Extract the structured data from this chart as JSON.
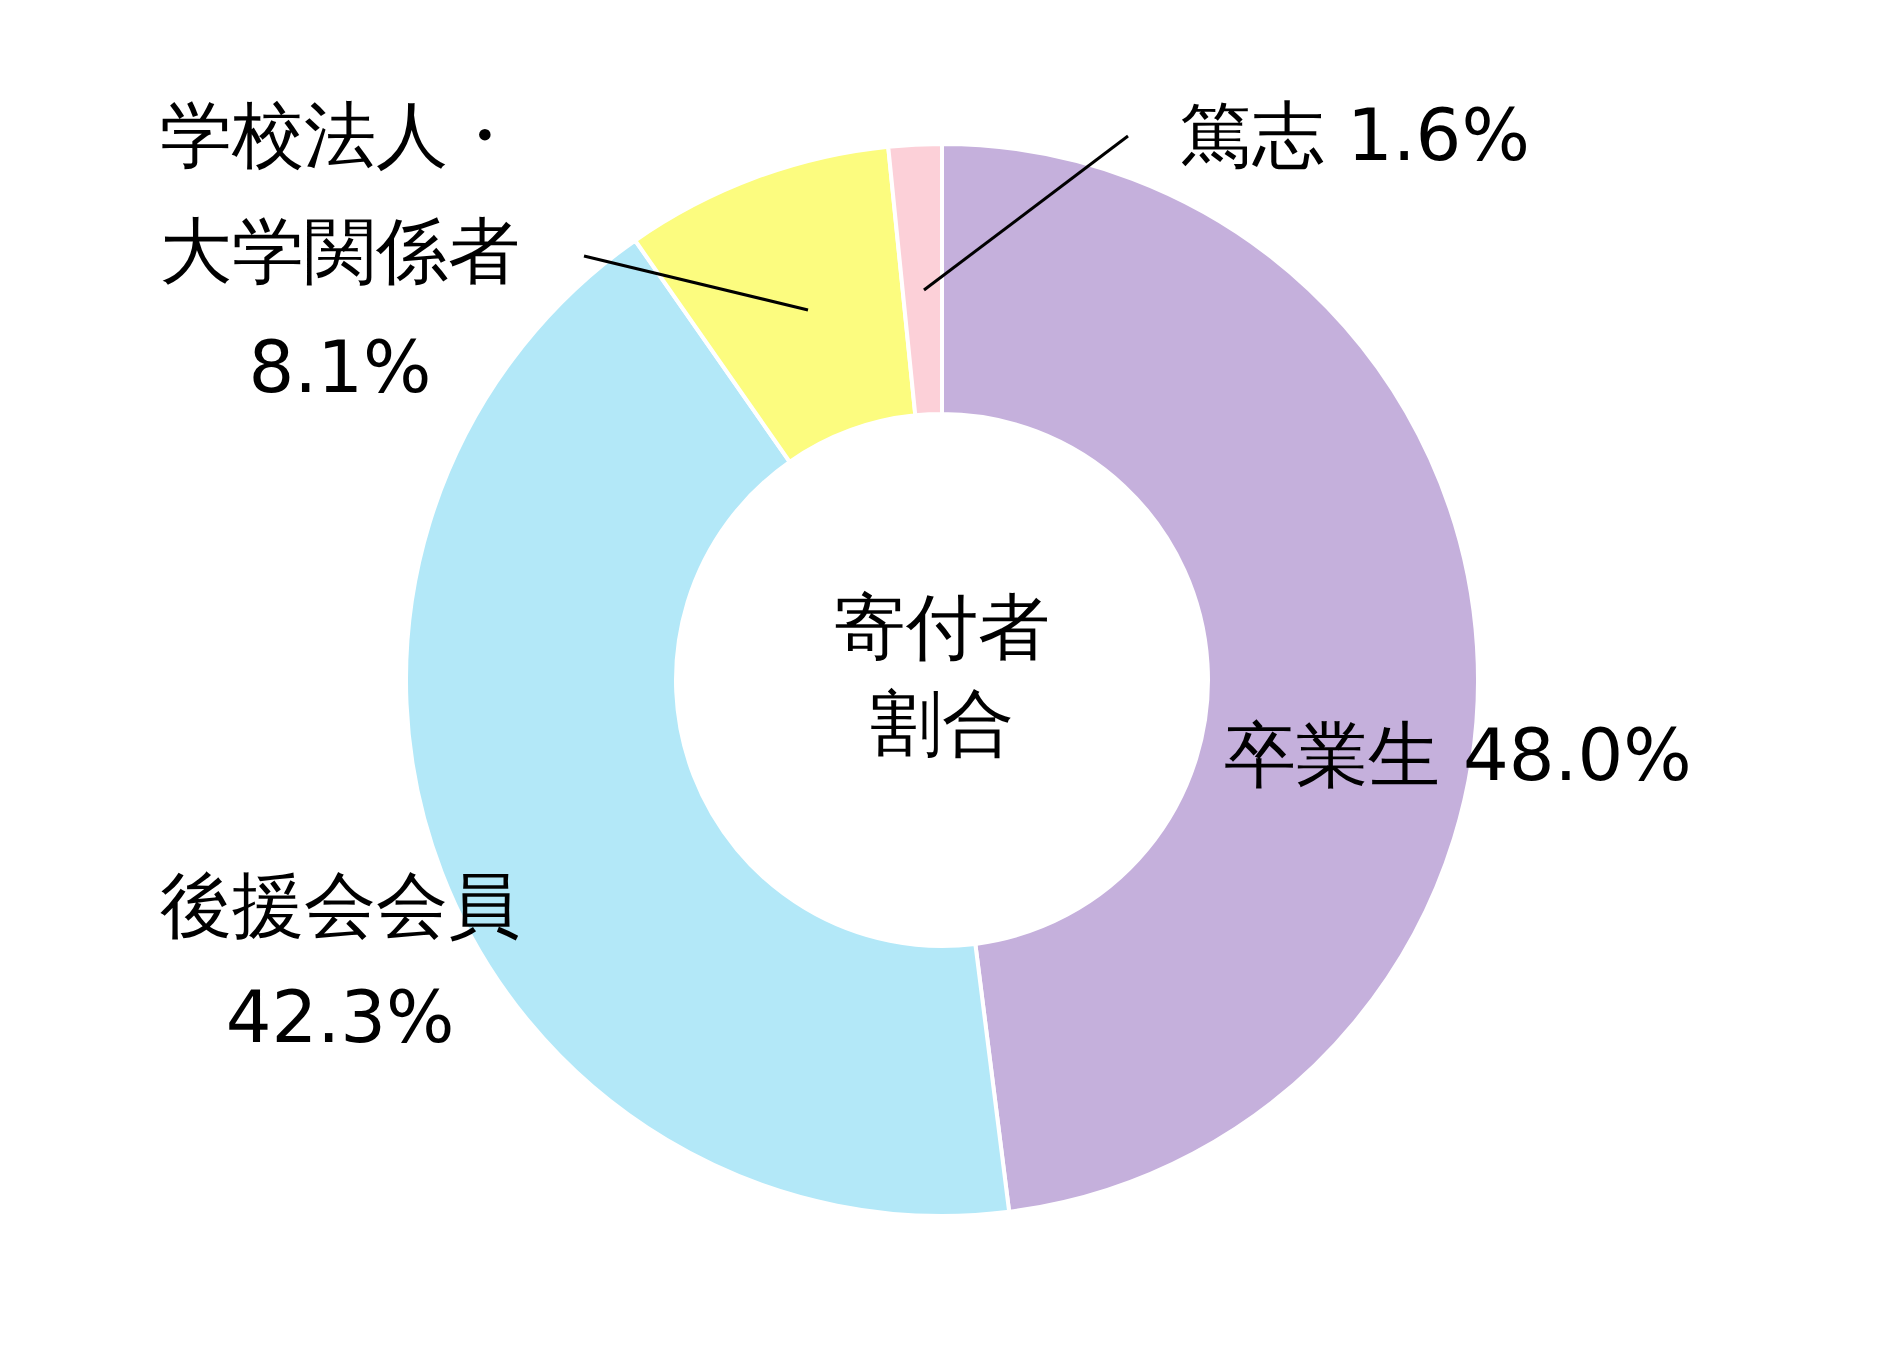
{
  "chart_data": {
    "type": "donut",
    "title": "寄付者割合",
    "categories": [
      "卒業生",
      "後援会会員",
      "学校法人・大学関係者",
      "篤志"
    ],
    "values": [
      48.0,
      42.3,
      8.1,
      1.6
    ],
    "colors": [
      "#c5b0dc",
      "#b3e8f8",
      "#fcfc7f",
      "#fcd0d8"
    ],
    "value_labels": [
      "48.0%",
      "42.3%",
      "8.1%",
      "1.6%"
    ]
  }
}
